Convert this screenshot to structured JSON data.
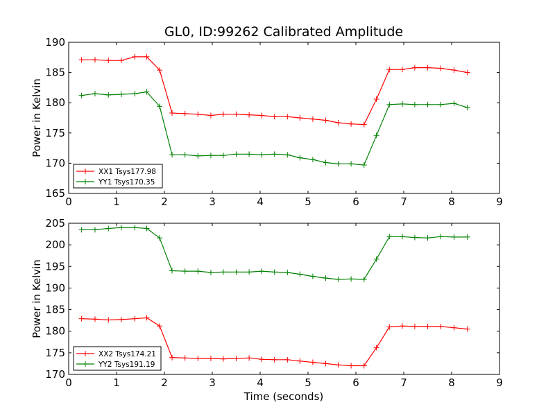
{
  "figure": {
    "title": "GL0, ID:99262 Calibrated Amplitude",
    "xlabel": "Time (seconds)"
  },
  "colors": {
    "XX": "#ff0000",
    "YY": "#008000"
  },
  "chart_data": [
    {
      "type": "line",
      "title": "GL0, ID:99262 Calibrated Amplitude",
      "xlabel": "",
      "ylabel": "Power in Kelvin",
      "xlim": [
        0,
        9
      ],
      "ylim": [
        165,
        190
      ],
      "xticks": [
        "0",
        "1",
        "2",
        "3",
        "4",
        "5",
        "6",
        "7",
        "8",
        "9"
      ],
      "yticks": [
        "165",
        "170",
        "175",
        "180",
        "185",
        "190"
      ],
      "grid": false,
      "legend": "lower-left",
      "x": [
        0.27,
        0.55,
        0.83,
        1.1,
        1.38,
        1.63,
        1.9,
        2.16,
        2.43,
        2.7,
        2.97,
        3.23,
        3.5,
        3.77,
        4.03,
        4.3,
        4.57,
        4.83,
        5.1,
        5.37,
        5.63,
        5.9,
        6.17,
        6.43,
        6.7,
        6.97,
        7.23,
        7.5,
        7.77,
        8.05,
        8.33
      ],
      "series": [
        {
          "name": "XX1 Tsys177.98",
          "color": "#ff0000",
          "values": [
            187.1,
            187.1,
            187.0,
            187.0,
            187.6,
            187.6,
            185.4,
            178.3,
            178.2,
            178.1,
            177.9,
            178.1,
            178.1,
            178.0,
            177.9,
            177.7,
            177.7,
            177.5,
            177.3,
            177.1,
            176.7,
            176.5,
            176.4,
            180.6,
            185.5,
            185.5,
            185.8,
            185.8,
            185.7,
            185.4,
            185.0
          ]
        },
        {
          "name": "YY1 Tsys170.35",
          "color": "#008000",
          "values": [
            181.2,
            181.5,
            181.3,
            181.4,
            181.5,
            181.8,
            179.4,
            171.4,
            171.4,
            171.2,
            171.3,
            171.3,
            171.5,
            171.5,
            171.4,
            171.5,
            171.4,
            170.9,
            170.6,
            170.1,
            169.9,
            169.9,
            169.7,
            174.6,
            179.7,
            179.8,
            179.7,
            179.7,
            179.7,
            179.9,
            179.2
          ]
        }
      ]
    },
    {
      "type": "line",
      "title": "",
      "xlabel": "Time (seconds)",
      "ylabel": "Power in Kelvin",
      "xlim": [
        0,
        9
      ],
      "ylim": [
        170,
        205
      ],
      "xticks": [
        "0",
        "1",
        "2",
        "3",
        "4",
        "5",
        "6",
        "7",
        "8",
        "9"
      ],
      "yticks": [
        "170",
        "175",
        "180",
        "185",
        "190",
        "195",
        "200",
        "205"
      ],
      "grid": false,
      "legend": "lower-left",
      "x": [
        0.27,
        0.55,
        0.83,
        1.1,
        1.38,
        1.63,
        1.9,
        2.16,
        2.43,
        2.7,
        2.97,
        3.23,
        3.5,
        3.77,
        4.03,
        4.3,
        4.57,
        4.83,
        5.1,
        5.37,
        5.63,
        5.9,
        6.17,
        6.43,
        6.7,
        6.97,
        7.23,
        7.5,
        7.77,
        8.05,
        8.33
      ],
      "series": [
        {
          "name": "XX2 Tsys174.21",
          "color": "#ff0000",
          "values": [
            182.9,
            182.8,
            182.6,
            182.7,
            182.9,
            183.1,
            181.2,
            173.9,
            173.8,
            173.7,
            173.7,
            173.6,
            173.7,
            173.8,
            173.5,
            173.4,
            173.4,
            173.1,
            172.8,
            172.5,
            172.2,
            172.0,
            172.0,
            176.2,
            181.0,
            181.2,
            181.1,
            181.1,
            181.1,
            180.8,
            180.5
          ]
        },
        {
          "name": "YY2 Tsys191.19",
          "color": "#008000",
          "values": [
            203.5,
            203.5,
            203.8,
            204.0,
            204.0,
            203.8,
            201.6,
            194.0,
            193.9,
            193.9,
            193.6,
            193.7,
            193.7,
            193.7,
            193.9,
            193.7,
            193.6,
            193.2,
            192.7,
            192.3,
            192.0,
            192.1,
            192.0,
            196.7,
            201.9,
            201.9,
            201.7,
            201.6,
            201.9,
            201.8,
            201.8
          ]
        }
      ]
    }
  ]
}
